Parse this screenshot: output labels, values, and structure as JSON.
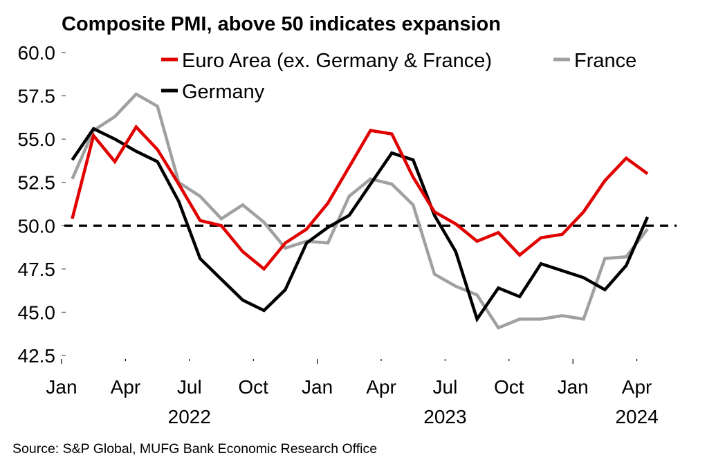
{
  "chart_data": {
    "type": "line",
    "title": "Composite PMI, above 50 indicates  expansion",
    "xlabel": "",
    "ylabel": "",
    "ylim": [
      42.5,
      60.0
    ],
    "yticks": [
      "60.0",
      "57.5",
      "55.0",
      "52.5",
      "50.0",
      "47.5",
      "45.0",
      "42.5"
    ],
    "ytick_values": [
      60.0,
      57.5,
      55.0,
      52.5,
      50.0,
      47.5,
      45.0,
      42.5
    ],
    "x": [
      "2022-01",
      "2022-02",
      "2022-03",
      "2022-04",
      "2022-05",
      "2022-06",
      "2022-07",
      "2022-08",
      "2022-09",
      "2022-10",
      "2022-11",
      "2022-12",
      "2023-01",
      "2023-02",
      "2023-03",
      "2023-04",
      "2023-05",
      "2023-06",
      "2023-07",
      "2023-08",
      "2023-09",
      "2023-10",
      "2023-11",
      "2023-12",
      "2024-01",
      "2024-02",
      "2024-03",
      "2024-04"
    ],
    "xtick_labels": [
      {
        "label": "Jan",
        "month_index": 0
      },
      {
        "label": "Apr",
        "month_index": 3
      },
      {
        "label": "Jul",
        "month_index": 6
      },
      {
        "label": "Oct",
        "month_index": 9
      },
      {
        "label": "Jan",
        "month_index": 12
      },
      {
        "label": "Apr",
        "month_index": 15
      },
      {
        "label": "Jul",
        "month_index": 18
      },
      {
        "label": "Oct",
        "month_index": 21
      },
      {
        "label": "Jan",
        "month_index": 24
      },
      {
        "label": "Apr",
        "month_index": 27
      }
    ],
    "year_labels": [
      {
        "label": "2022",
        "center_month_index": 6
      },
      {
        "label": "2023",
        "center_month_index": 18
      },
      {
        "label": "2024",
        "center_month_index": 27
      }
    ],
    "reference_line": {
      "value": 50.0,
      "style": "dashed",
      "color": "#000000"
    },
    "grid": false,
    "legend_position": "top",
    "series": [
      {
        "name": "Euro Area (ex. Germany & France)",
        "color": "#e00000",
        "values": [
          50.4,
          55.2,
          53.7,
          55.7,
          54.4,
          52.4,
          50.3,
          50.0,
          48.5,
          47.5,
          49.0,
          49.8,
          51.3,
          53.4,
          55.5,
          55.3,
          52.8,
          50.8,
          50.1,
          49.1,
          49.6,
          48.3,
          49.3,
          49.5,
          50.8,
          52.6,
          53.9,
          53.0
        ]
      },
      {
        "name": "France",
        "color": "#a0a0a0",
        "values": [
          52.7,
          55.5,
          56.3,
          57.6,
          56.9,
          52.5,
          51.7,
          50.4,
          51.2,
          50.2,
          48.7,
          49.1,
          49.0,
          51.7,
          52.7,
          52.4,
          51.2,
          47.2,
          46.5,
          46.0,
          44.1,
          44.6,
          44.6,
          44.8,
          44.6,
          48.1,
          48.2,
          49.8
        ]
      },
      {
        "name": "Germany",
        "color": "#000000",
        "values": [
          53.8,
          55.6,
          55.0,
          54.3,
          53.7,
          51.4,
          48.1,
          46.9,
          45.7,
          45.1,
          46.3,
          49.0,
          49.9,
          50.6,
          52.4,
          54.2,
          53.8,
          50.6,
          48.5,
          44.6,
          46.4,
          45.9,
          47.8,
          47.4,
          47.0,
          46.3,
          47.7,
          50.5
        ]
      }
    ],
    "legend_order": [
      0,
      1,
      2
    ],
    "source": "Source: S&P Global, MUFG Bank Economic Research Office"
  }
}
